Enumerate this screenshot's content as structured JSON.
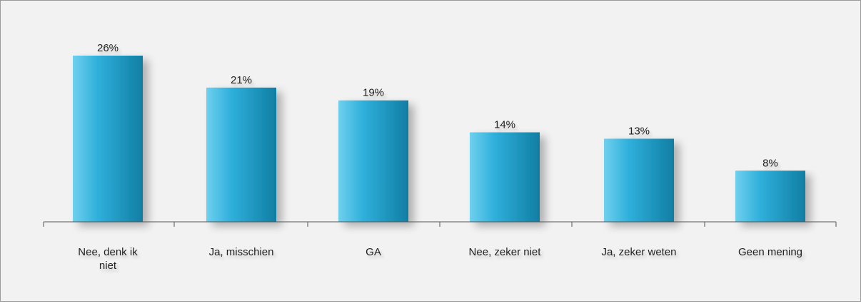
{
  "chart_data": {
    "type": "bar",
    "title": "",
    "xlabel": "",
    "ylabel": "",
    "ylim": [
      0,
      26
    ],
    "grid": false,
    "legend": "none",
    "categories": [
      "Nee, denk ik niet",
      "Ja, misschien",
      "GA",
      "Nee, zeker niet",
      "Ja, zeker weten",
      "Geen mening"
    ],
    "category_label_lines": [
      [
        "Nee, denk ik",
        "niet"
      ],
      [
        "Ja, misschien"
      ],
      [
        "GA"
      ],
      [
        "Nee, zeker niet"
      ],
      [
        "Ja, zeker weten"
      ],
      [
        "Geen mening"
      ]
    ],
    "values": [
      26,
      21,
      19,
      14,
      13,
      8
    ],
    "value_labels": [
      "26%",
      "21%",
      "19%",
      "14%",
      "13%",
      "8%"
    ],
    "colors": {
      "bar_light": "#6fd0ee",
      "bar_mid": "#2fb0dc",
      "bar_dark": "#107ea3",
      "axis": "#555555",
      "text": "#222222",
      "background": "#f2f2f2",
      "border": "#9a9a9a"
    }
  }
}
